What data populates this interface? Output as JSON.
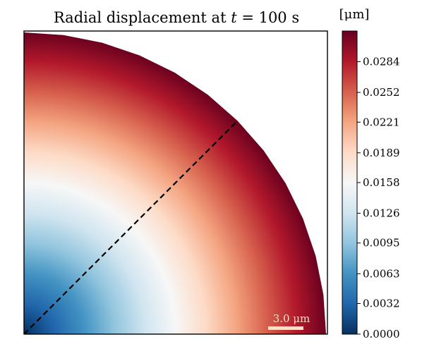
{
  "chart_data": {
    "type": "heatmap",
    "title": "Radial displacement at t = 100 s",
    "title_parts": {
      "prefix": "Radial displacement at ",
      "var": "t",
      "suffix": " = 100 s"
    },
    "colorbar": {
      "unit_label": "[μm]",
      "min": 0.0,
      "max": 0.0316,
      "ticks": [
        "0.0000",
        "0.0032",
        "0.0063",
        "0.0095",
        "0.0126",
        "0.0158",
        "0.0189",
        "0.0221",
        "0.0252",
        "0.0284"
      ],
      "tick_values": [
        0.0,
        0.0032,
        0.0063,
        0.0095,
        0.0126,
        0.0158,
        0.0189,
        0.0221,
        0.0252,
        0.0284
      ],
      "colormap": "RdBu_r",
      "stops": [
        "#053061",
        "#2166ac",
        "#4393c3",
        "#92c5de",
        "#d1e5f0",
        "#f7f7f7",
        "#fddbc7",
        "#f4a582",
        "#d6604d",
        "#b2182b",
        "#67001f"
      ]
    },
    "domain": "quarter-disk with origin at lower-left corner",
    "field": "radial displacement increasing with radius",
    "section_line": "dashed diagonal from origin to outer boundary at 45°",
    "scale_bar": {
      "label": "3.0 μm",
      "length_um": 3.0
    },
    "grid": false,
    "legend": "colorbar-right"
  }
}
